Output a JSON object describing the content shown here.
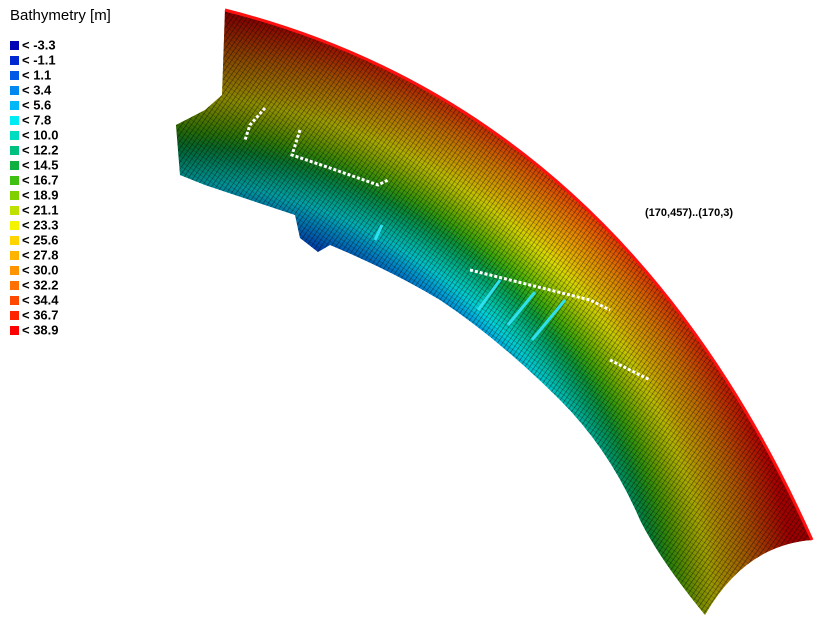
{
  "legend": {
    "title": "Bathymetry [m]",
    "items": [
      {
        "label": "< -3.3",
        "color": "#0000b4"
      },
      {
        "label": "< -1.1",
        "color": "#0028d2"
      },
      {
        "label": "< 1.1",
        "color": "#0058e6"
      },
      {
        "label": "< 3.4",
        "color": "#0088f0"
      },
      {
        "label": "< 5.6",
        "color": "#00b8f8"
      },
      {
        "label": "< 7.8",
        "color": "#00ecf4"
      },
      {
        "label": "< 10.0",
        "color": "#00dcc0"
      },
      {
        "label": "< 12.2",
        "color": "#00c080"
      },
      {
        "label": "< 14.5",
        "color": "#10b040"
      },
      {
        "label": "< 16.7",
        "color": "#40c010"
      },
      {
        "label": "< 18.9",
        "color": "#80d000"
      },
      {
        "label": "< 21.1",
        "color": "#c0e000"
      },
      {
        "label": "< 23.3",
        "color": "#f4f400"
      },
      {
        "label": "< 25.6",
        "color": "#ffd400"
      },
      {
        "label": "< 27.8",
        "color": "#ffb400"
      },
      {
        "label": "< 30.0",
        "color": "#ff9400"
      },
      {
        "label": "< 32.2",
        "color": "#ff7000"
      },
      {
        "label": "< 34.4",
        "color": "#ff4800"
      },
      {
        "label": "< 36.7",
        "color": "#ff2400"
      },
      {
        "label": "< 38.9",
        "color": "#ff0000"
      }
    ]
  },
  "annotation": "(170,457)..(170,3)"
}
